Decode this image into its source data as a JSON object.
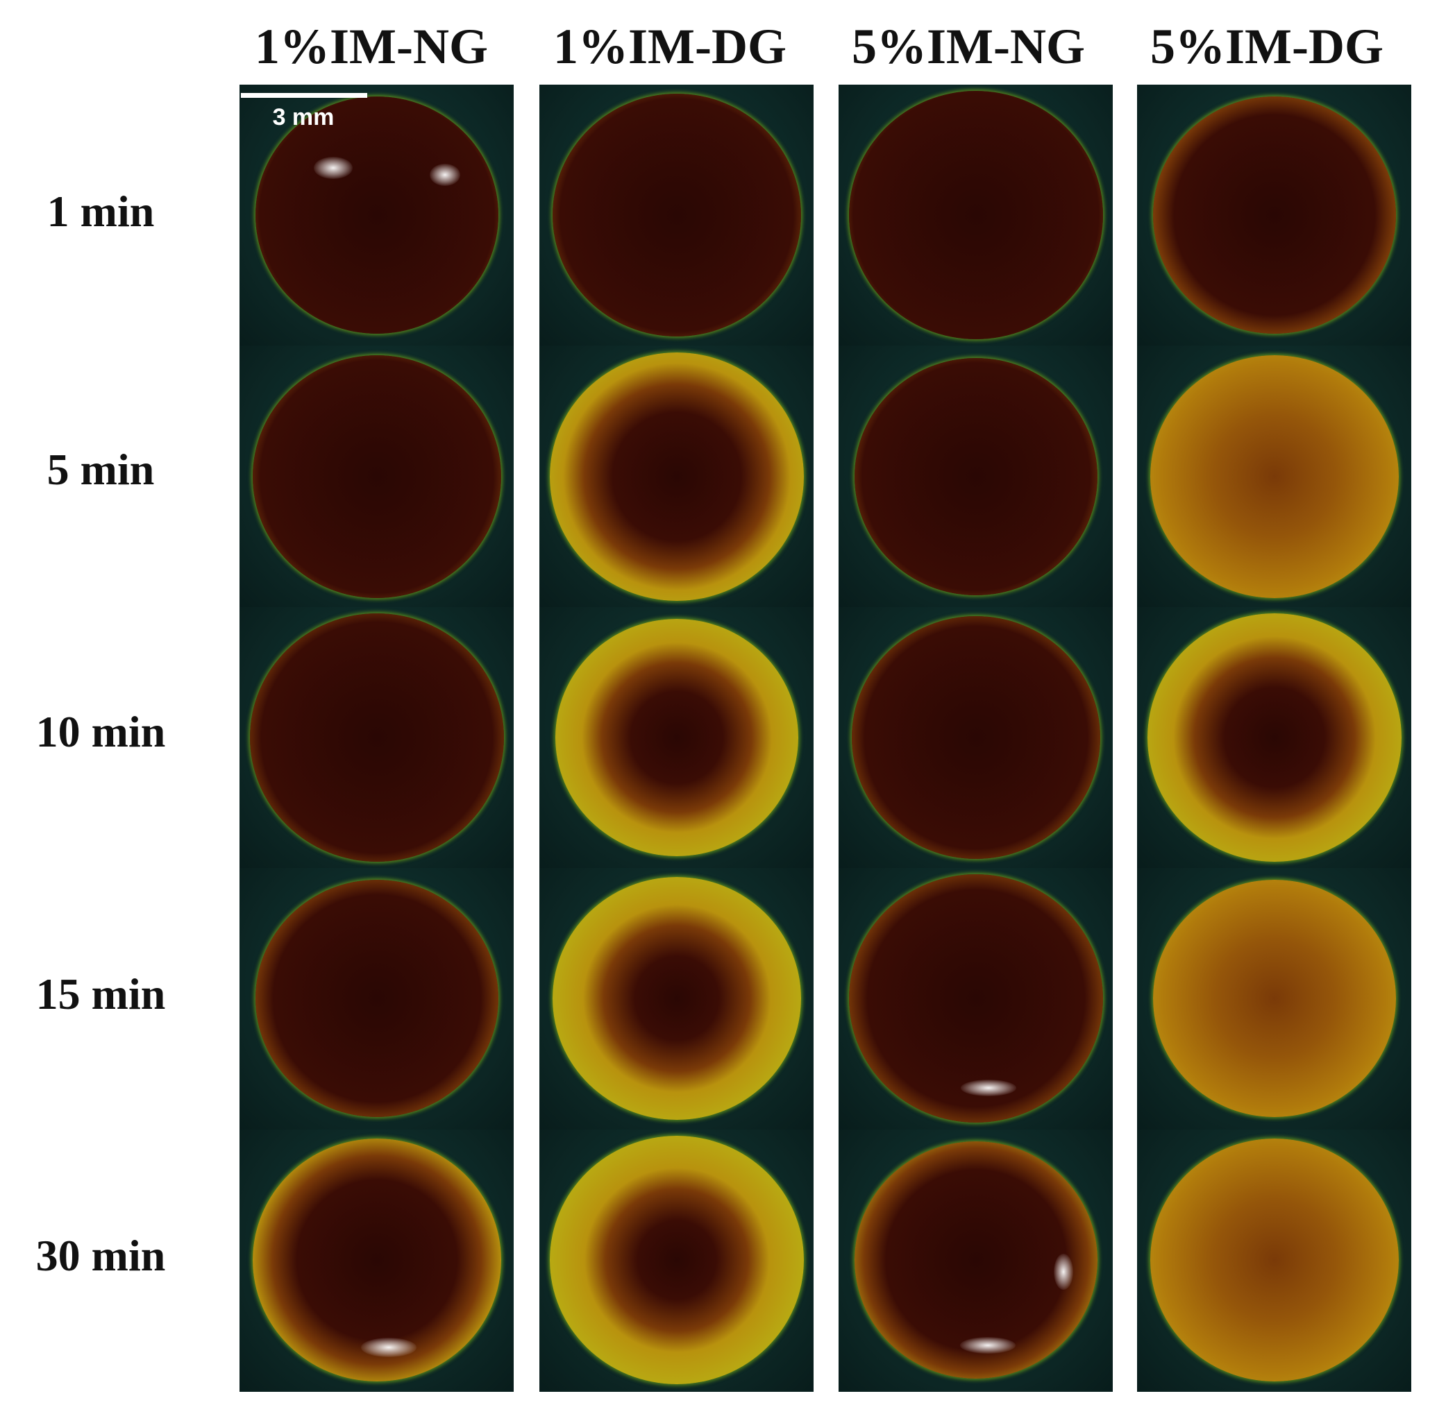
{
  "columns": [
    "1%IM-NG",
    "1%IM-DG",
    "5%IM-NG",
    "5%IM-DG"
  ],
  "rows": [
    "1 min",
    "5 min",
    "10 min",
    "15 min",
    "30 min"
  ],
  "scale_bar": {
    "label": "3 mm"
  },
  "colors": {
    "background": "#0d2a28",
    "rim": "#a8d61a",
    "amber": "#b8920e",
    "dark_core": "#2a0704"
  },
  "darkness": [
    [
      0.98,
      0.95,
      0.98,
      0.82
    ],
    [
      0.95,
      0.45,
      0.95,
      0.12
    ],
    [
      0.92,
      0.3,
      0.9,
      0.32
    ],
    [
      0.85,
      0.25,
      0.85,
      0.18
    ],
    [
      0.62,
      0.22,
      0.72,
      0.1
    ]
  ]
}
